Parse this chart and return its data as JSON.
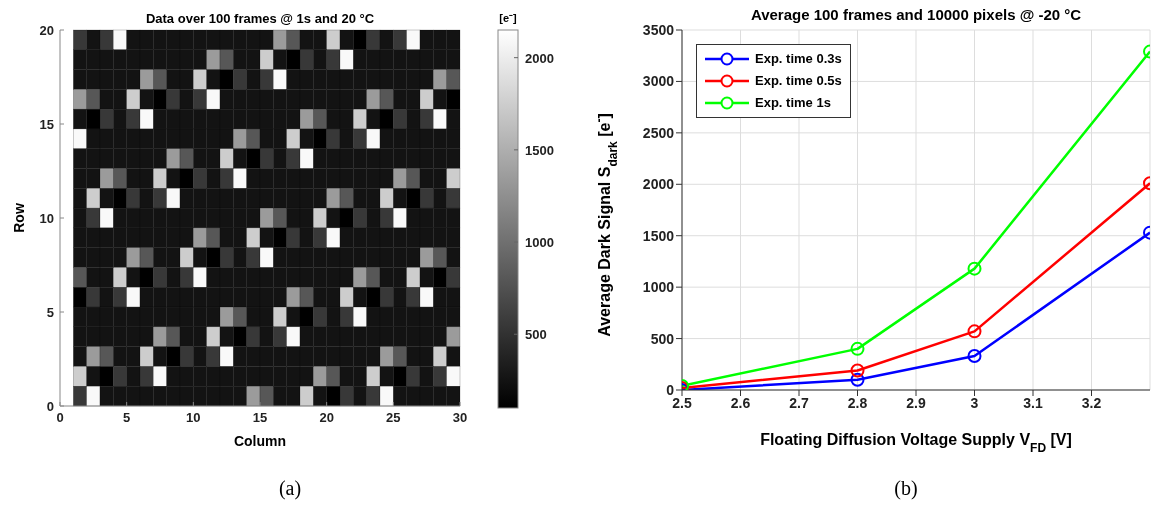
{
  "chart_data": [
    {
      "type": "heatmap",
      "title": "Data over 100 frames @ 1s and 20 °C",
      "xlabel": "Column",
      "ylabel": "Row",
      "clabel": "[e⁻]",
      "x": [
        1.5,
        2.5,
        3.5,
        4.5,
        5.5,
        6.5,
        7.5,
        8.5,
        9.5,
        10.5,
        11.5,
        12.5,
        13.5,
        14.5,
        15.5,
        16.5,
        17.5,
        18.5,
        19.5,
        20.5,
        21.5,
        22.5,
        23.5,
        24.5,
        25.5,
        26.5,
        27.5,
        28.5,
        29.5
      ],
      "xlim": [
        0,
        30
      ],
      "xticks": [
        0,
        5,
        10,
        15,
        20,
        25,
        30
      ],
      "ylim": [
        0,
        20
      ],
      "yticks": [
        0,
        5,
        10,
        15,
        20
      ],
      "clim": [
        100,
        2150
      ],
      "cticks": [
        500,
        1000,
        1500,
        2000
      ],
      "cells": [
        [
          550,
          250,
          550,
          2100,
          250,
          250,
          250,
          250,
          250,
          250,
          250,
          250,
          250,
          250,
          250,
          1350,
          800,
          250,
          250,
          1750,
          250,
          100,
          550,
          250,
          550,
          2100,
          250,
          250,
          250
        ],
        [
          250,
          250,
          250,
          250,
          250,
          250,
          250,
          250,
          250,
          250,
          1350,
          800,
          250,
          250,
          1750,
          250,
          100,
          550,
          250,
          550,
          2100,
          250,
          250,
          250,
          250,
          250,
          250,
          250,
          250
        ],
        [
          250,
          250,
          250,
          250,
          250,
          1350,
          800,
          250,
          250,
          1750,
          250,
          100,
          550,
          250,
          550,
          2100,
          250,
          250,
          250,
          250,
          250,
          250,
          250,
          250,
          250,
          250,
          250,
          1350,
          800
        ],
        [
          1350,
          800,
          250,
          250,
          1750,
          250,
          100,
          550,
          250,
          550,
          2100,
          250,
          250,
          250,
          250,
          250,
          250,
          250,
          250,
          250,
          250,
          250,
          1350,
          800,
          250,
          250,
          1750,
          250,
          100
        ],
        [
          250,
          100,
          550,
          250,
          550,
          2100,
          250,
          250,
          250,
          250,
          250,
          250,
          250,
          250,
          250,
          250,
          250,
          1350,
          800,
          250,
          250,
          1750,
          250,
          100,
          550,
          250,
          550,
          2100,
          250
        ],
        [
          2100,
          250,
          250,
          250,
          250,
          250,
          250,
          250,
          250,
          250,
          250,
          250,
          1350,
          800,
          250,
          250,
          1750,
          250,
          100,
          550,
          250,
          550,
          2100,
          250,
          250,
          250,
          250,
          250,
          250
        ],
        [
          250,
          250,
          250,
          250,
          250,
          250,
          250,
          1350,
          800,
          250,
          250,
          1750,
          250,
          100,
          550,
          250,
          550,
          2100,
          250,
          250,
          250,
          250,
          250,
          250,
          250,
          250,
          250,
          250,
          250
        ],
        [
          250,
          250,
          1350,
          800,
          250,
          250,
          1750,
          250,
          100,
          550,
          250,
          550,
          2100,
          250,
          250,
          250,
          250,
          250,
          250,
          250,
          250,
          250,
          250,
          250,
          1350,
          800,
          250,
          250,
          1750
        ],
        [
          250,
          1750,
          250,
          100,
          550,
          250,
          550,
          2100,
          250,
          250,
          250,
          250,
          250,
          250,
          250,
          250,
          250,
          250,
          250,
          1350,
          800,
          250,
          250,
          1750,
          250,
          100,
          550,
          250,
          550
        ],
        [
          250,
          550,
          2100,
          250,
          250,
          250,
          250,
          250,
          250,
          250,
          250,
          250,
          250,
          250,
          1350,
          800,
          250,
          250,
          1750,
          250,
          100,
          550,
          250,
          550,
          2100,
          250,
          250,
          250,
          250
        ],
        [
          250,
          250,
          250,
          250,
          250,
          250,
          250,
          250,
          250,
          1350,
          800,
          250,
          250,
          1750,
          250,
          100,
          550,
          250,
          550,
          2100,
          250,
          250,
          250,
          250,
          250,
          250,
          250,
          250,
          250
        ],
        [
          250,
          250,
          250,
          250,
          1350,
          800,
          250,
          250,
          1750,
          250,
          100,
          550,
          250,
          550,
          2100,
          250,
          250,
          250,
          250,
          250,
          250,
          250,
          250,
          250,
          250,
          250,
          1350,
          800,
          250
        ],
        [
          800,
          250,
          250,
          1750,
          250,
          100,
          550,
          250,
          550,
          2100,
          250,
          250,
          250,
          250,
          250,
          250,
          250,
          250,
          250,
          250,
          250,
          1350,
          800,
          250,
          250,
          1750,
          250,
          100,
          550
        ],
        [
          100,
          550,
          250,
          550,
          2100,
          250,
          250,
          250,
          250,
          250,
          250,
          250,
          250,
          250,
          250,
          250,
          1350,
          800,
          250,
          250,
          1750,
          250,
          100,
          550,
          250,
          550,
          2100,
          250,
          250
        ],
        [
          250,
          250,
          250,
          250,
          250,
          250,
          250,
          250,
          250,
          250,
          250,
          1350,
          800,
          250,
          250,
          1750,
          250,
          100,
          550,
          250,
          550,
          2100,
          250,
          250,
          250,
          250,
          250,
          250,
          250
        ],
        [
          250,
          250,
          250,
          250,
          250,
          250,
          1350,
          800,
          250,
          250,
          1750,
          250,
          100,
          550,
          250,
          550,
          2100,
          250,
          250,
          250,
          250,
          250,
          250,
          250,
          250,
          250,
          250,
          250,
          1350
        ],
        [
          250,
          1350,
          800,
          250,
          250,
          1750,
          250,
          100,
          550,
          250,
          550,
          2100,
          250,
          250,
          250,
          250,
          250,
          250,
          250,
          250,
          250,
          250,
          250,
          1350,
          800,
          250,
          250,
          1750,
          250
        ],
        [
          1750,
          250,
          100,
          550,
          250,
          550,
          2100,
          250,
          250,
          250,
          250,
          250,
          250,
          250,
          250,
          250,
          250,
          250,
          1350,
          800,
          250,
          250,
          1750,
          250,
          100,
          550,
          250,
          550,
          2100
        ],
        [
          550,
          2100,
          250,
          250,
          250,
          250,
          250,
          250,
          250,
          250,
          250,
          250,
          250,
          1350,
          800,
          250,
          250,
          1750,
          250,
          100,
          550,
          250,
          550,
          2100,
          250,
          250,
          250,
          250,
          250
        ]
      ],
      "annotations": [
        "(a)"
      ]
    },
    {
      "type": "line",
      "title": "Average 100 frames and 10000 pixels @ -20 °C",
      "xlabel": "Floating Diffusion Voltage Supply V$_{FD}$ [V]",
      "ylabel": "Average Dark Signal S$_{dark}$ [e$^{-}$]",
      "x": [
        2.5,
        2.8,
        3.0,
        3.3
      ],
      "xlim": [
        2.5,
        3.3
      ],
      "xticks": [
        2.5,
        2.6,
        2.7,
        2.8,
        2.9,
        3,
        3.1,
        3.2
      ],
      "ylim": [
        0,
        3500
      ],
      "yticks": [
        0,
        500,
        1000,
        1500,
        2000,
        2500,
        3000,
        3500
      ],
      "grid": true,
      "legend": "top left",
      "marker": "circle",
      "line_style": "solid",
      "series": [
        {
          "name": "Exp. time 0.3s",
          "color": "#0000ff",
          "values": [
            0,
            100,
            330,
            1530
          ]
        },
        {
          "name": "Exp. time 0.5s",
          "color": "#ff0000",
          "values": [
            20,
            190,
            570,
            2010
          ]
        },
        {
          "name": "Exp. time 1s",
          "color": "#00ff00",
          "values": [
            40,
            400,
            1180,
            3290
          ]
        }
      ],
      "annotations": [
        "(b)"
      ]
    }
  ]
}
